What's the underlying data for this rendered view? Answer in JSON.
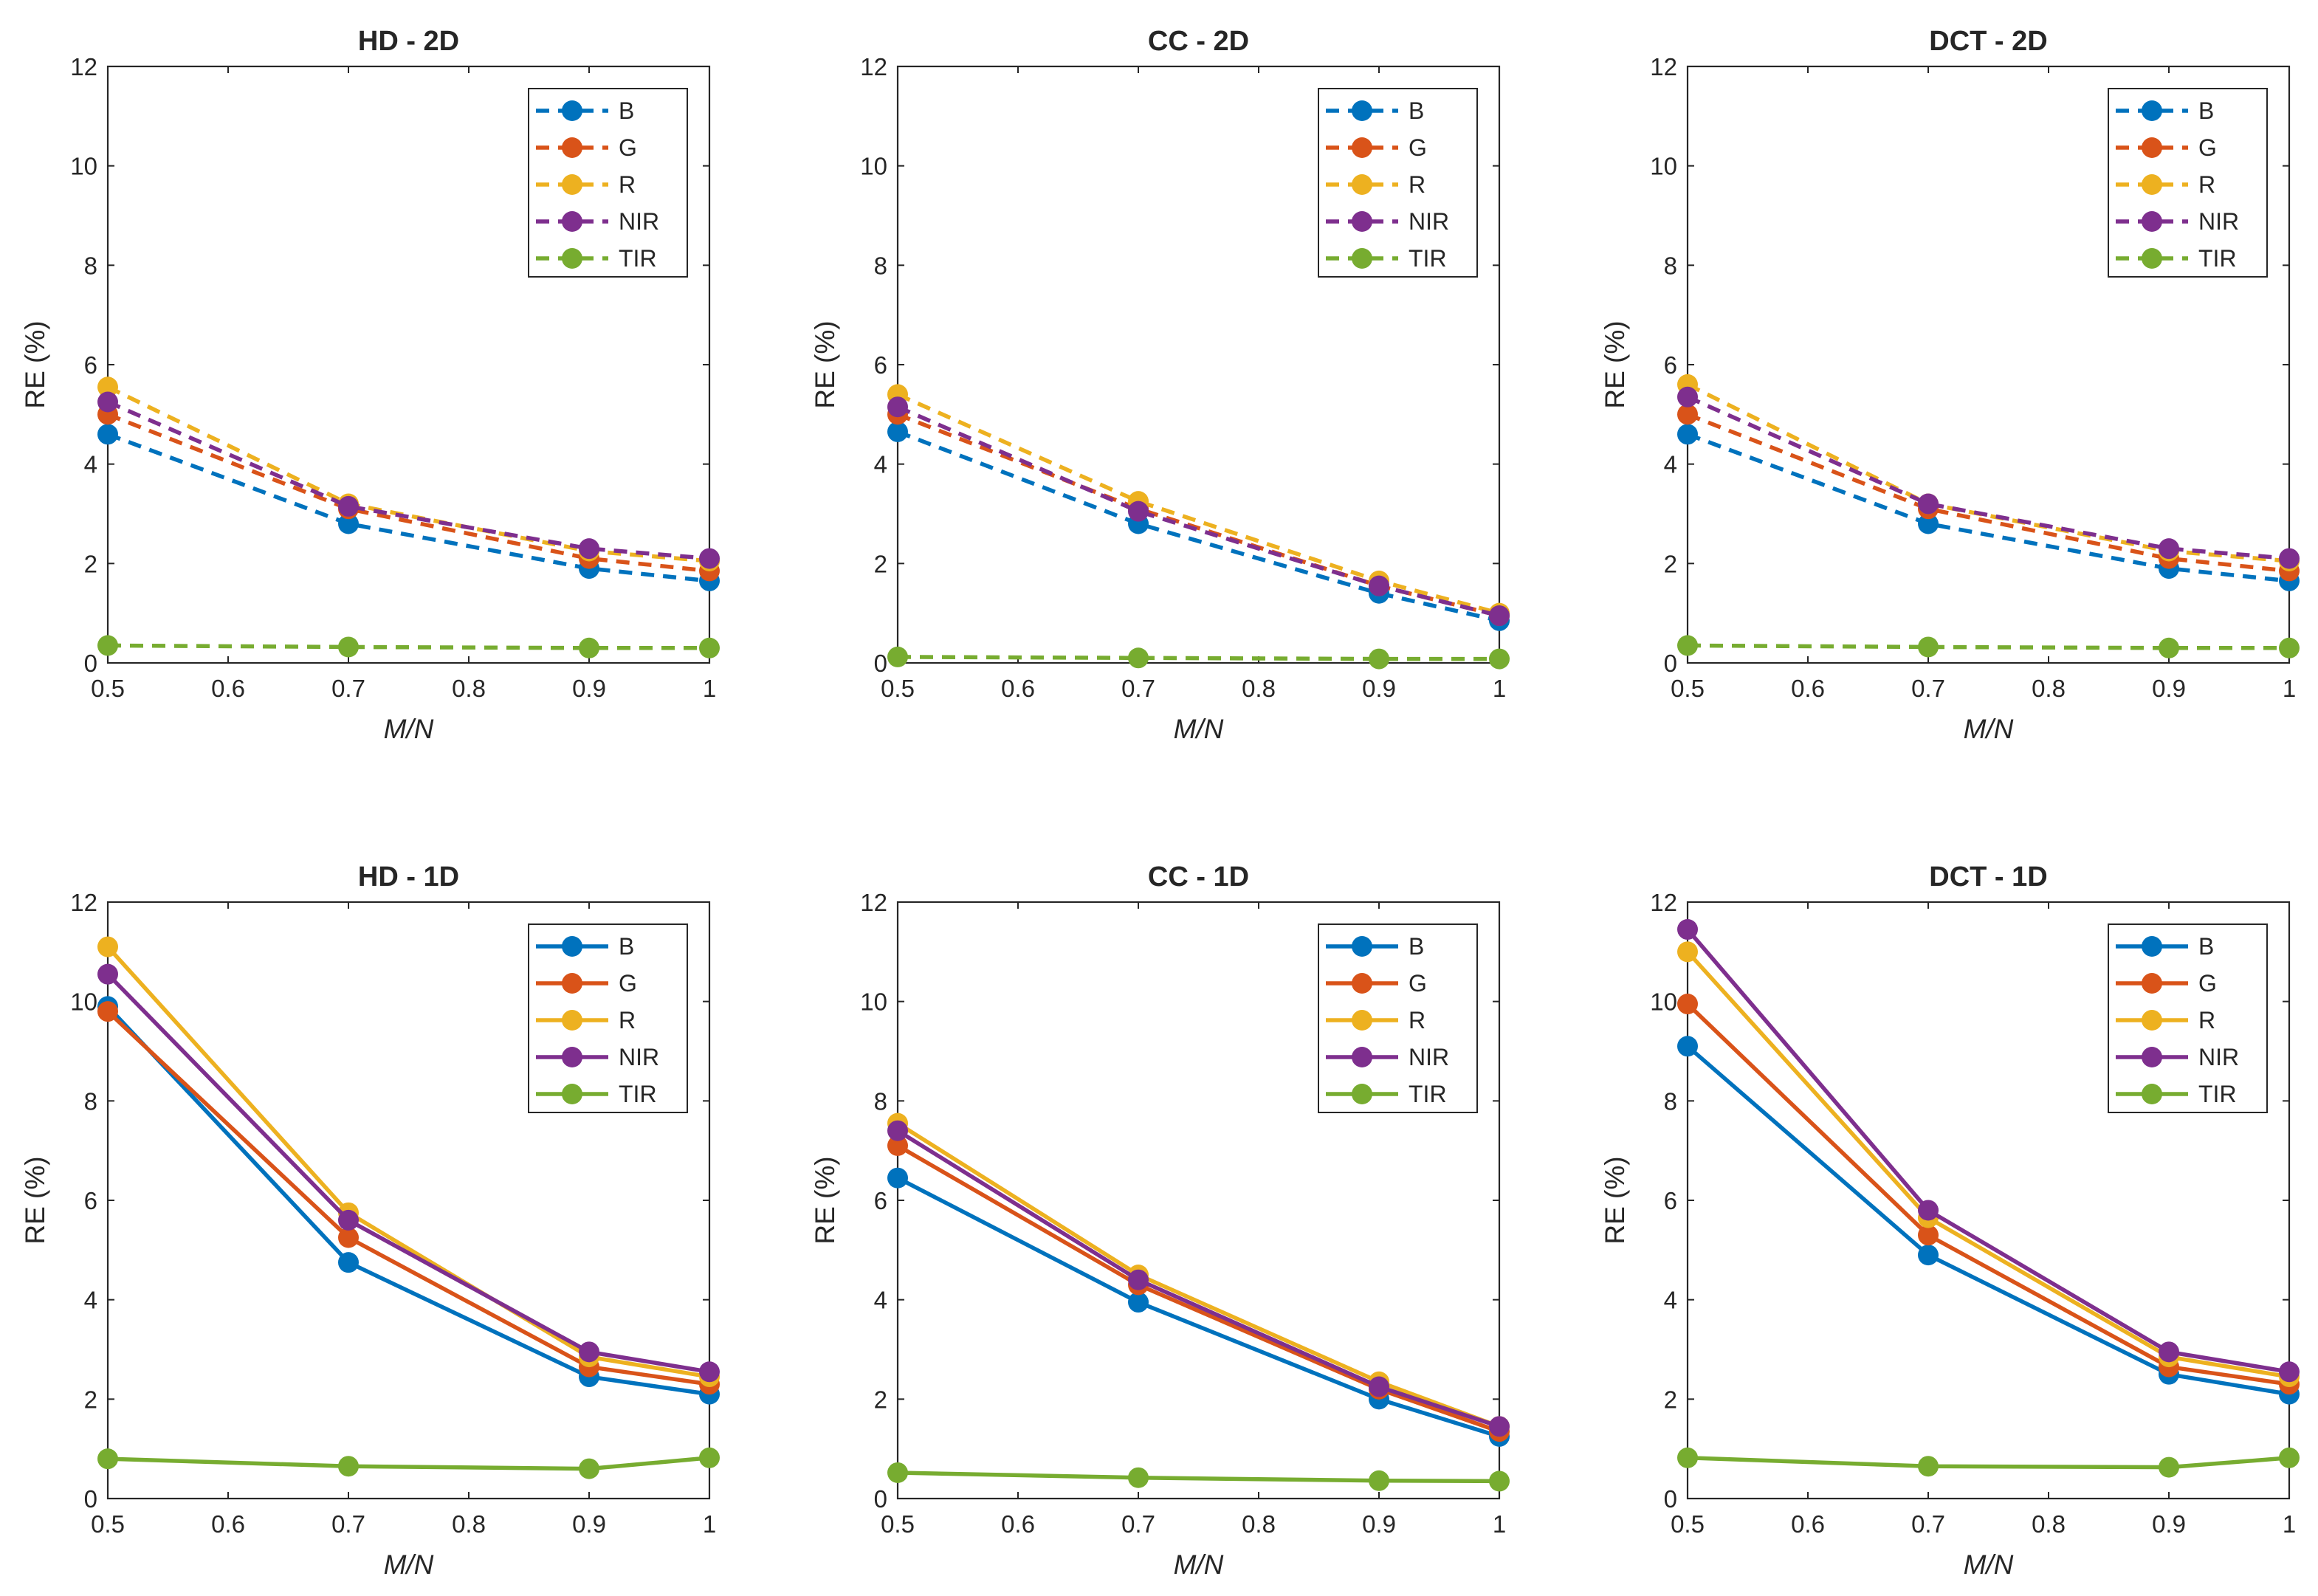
{
  "chart_data": [
    {
      "type": "line",
      "title": "HD - 2D",
      "xlabel": "M/N",
      "ylabel": "RE (%)",
      "line_style": "dashed",
      "xlim": [
        0.5,
        1
      ],
      "ylim": [
        0,
        12
      ],
      "x": [
        0.5,
        0.7,
        0.9,
        1
      ],
      "x_ticks": [
        "0.5",
        "0.6",
        "0.7",
        "0.8",
        "0.9",
        "1"
      ],
      "y_ticks": [
        "0",
        "2",
        "4",
        "6",
        "8",
        "10",
        "12"
      ],
      "legend_position": "top-right",
      "series": [
        {
          "name": "B",
          "color": "#0072BD",
          "values": [
            4.6,
            2.8,
            1.9,
            1.65
          ]
        },
        {
          "name": "G",
          "color": "#D95319",
          "values": [
            5.0,
            3.1,
            2.1,
            1.85
          ]
        },
        {
          "name": "R",
          "color": "#EDB120",
          "values": [
            5.55,
            3.2,
            2.25,
            2.05
          ]
        },
        {
          "name": "NIR",
          "color": "#7E2F8E",
          "values": [
            5.25,
            3.15,
            2.3,
            2.1
          ]
        },
        {
          "name": "TIR",
          "color": "#77AC30",
          "values": [
            0.35,
            0.32,
            0.3,
            0.3
          ]
        }
      ]
    },
    {
      "type": "line",
      "title": "CC - 2D",
      "xlabel": "M/N",
      "ylabel": "RE (%)",
      "line_style": "dashed",
      "xlim": [
        0.5,
        1
      ],
      "ylim": [
        0,
        12
      ],
      "x": [
        0.5,
        0.7,
        0.9,
        1
      ],
      "x_ticks": [
        "0.5",
        "0.6",
        "0.7",
        "0.8",
        "0.9",
        "1"
      ],
      "y_ticks": [
        "0",
        "2",
        "4",
        "6",
        "8",
        "10",
        "12"
      ],
      "legend_position": "top-right",
      "series": [
        {
          "name": "B",
          "color": "#0072BD",
          "values": [
            4.65,
            2.8,
            1.4,
            0.85
          ]
        },
        {
          "name": "G",
          "color": "#D95319",
          "values": [
            5.0,
            3.1,
            1.55,
            0.95
          ]
        },
        {
          "name": "R",
          "color": "#EDB120",
          "values": [
            5.4,
            3.25,
            1.65,
            1.0
          ]
        },
        {
          "name": "NIR",
          "color": "#7E2F8E",
          "values": [
            5.15,
            3.05,
            1.55,
            0.95
          ]
        },
        {
          "name": "TIR",
          "color": "#77AC30",
          "values": [
            0.12,
            0.1,
            0.08,
            0.08
          ]
        }
      ]
    },
    {
      "type": "line",
      "title": "DCT - 2D",
      "xlabel": "M/N",
      "ylabel": "RE (%)",
      "line_style": "dashed",
      "xlim": [
        0.5,
        1
      ],
      "ylim": [
        0,
        12
      ],
      "x": [
        0.5,
        0.7,
        0.9,
        1
      ],
      "x_ticks": [
        "0.5",
        "0.6",
        "0.7",
        "0.8",
        "0.9",
        "1"
      ],
      "y_ticks": [
        "0",
        "2",
        "4",
        "6",
        "8",
        "10",
        "12"
      ],
      "legend_position": "top-right",
      "series": [
        {
          "name": "B",
          "color": "#0072BD",
          "values": [
            4.6,
            2.8,
            1.9,
            1.65
          ]
        },
        {
          "name": "G",
          "color": "#D95319",
          "values": [
            5.0,
            3.1,
            2.1,
            1.85
          ]
        },
        {
          "name": "R",
          "color": "#EDB120",
          "values": [
            5.6,
            3.2,
            2.25,
            2.05
          ]
        },
        {
          "name": "NIR",
          "color": "#7E2F8E",
          "values": [
            5.35,
            3.2,
            2.3,
            2.1
          ]
        },
        {
          "name": "TIR",
          "color": "#77AC30",
          "values": [
            0.35,
            0.32,
            0.3,
            0.3
          ]
        }
      ]
    },
    {
      "type": "line",
      "title": "HD - 1D",
      "xlabel": "M/N",
      "ylabel": "RE (%)",
      "line_style": "solid",
      "xlim": [
        0.5,
        1
      ],
      "ylim": [
        0,
        12
      ],
      "x": [
        0.5,
        0.7,
        0.9,
        1
      ],
      "x_ticks": [
        "0.5",
        "0.6",
        "0.7",
        "0.8",
        "0.9",
        "1"
      ],
      "y_ticks": [
        "0",
        "2",
        "4",
        "6",
        "8",
        "10",
        "12"
      ],
      "legend_position": "top-right",
      "series": [
        {
          "name": "B",
          "color": "#0072BD",
          "values": [
            9.9,
            4.75,
            2.45,
            2.1
          ]
        },
        {
          "name": "G",
          "color": "#D95319",
          "values": [
            9.8,
            5.25,
            2.65,
            2.3
          ]
        },
        {
          "name": "R",
          "color": "#EDB120",
          "values": [
            11.1,
            5.75,
            2.85,
            2.45
          ]
        },
        {
          "name": "NIR",
          "color": "#7E2F8E",
          "values": [
            10.55,
            5.6,
            2.95,
            2.55
          ]
        },
        {
          "name": "TIR",
          "color": "#77AC30",
          "values": [
            0.8,
            0.65,
            0.6,
            0.82
          ]
        }
      ]
    },
    {
      "type": "line",
      "title": "CC - 1D",
      "xlabel": "M/N",
      "ylabel": "RE (%)",
      "line_style": "solid",
      "xlim": [
        0.5,
        1
      ],
      "ylim": [
        0,
        12
      ],
      "x": [
        0.5,
        0.7,
        0.9,
        1
      ],
      "x_ticks": [
        "0.5",
        "0.6",
        "0.7",
        "0.8",
        "0.9",
        "1"
      ],
      "y_ticks": [
        "0",
        "2",
        "4",
        "6",
        "8",
        "10",
        "12"
      ],
      "legend_position": "top-right",
      "series": [
        {
          "name": "B",
          "color": "#0072BD",
          "values": [
            6.45,
            3.95,
            2.0,
            1.25
          ]
        },
        {
          "name": "G",
          "color": "#D95319",
          "values": [
            7.1,
            4.3,
            2.2,
            1.35
          ]
        },
        {
          "name": "R",
          "color": "#EDB120",
          "values": [
            7.55,
            4.5,
            2.35,
            1.45
          ]
        },
        {
          "name": "NIR",
          "color": "#7E2F8E",
          "values": [
            7.4,
            4.4,
            2.25,
            1.45
          ]
        },
        {
          "name": "TIR",
          "color": "#77AC30",
          "values": [
            0.52,
            0.42,
            0.36,
            0.35
          ]
        }
      ]
    },
    {
      "type": "line",
      "title": "DCT - 1D",
      "xlabel": "M/N",
      "ylabel": "RE (%)",
      "line_style": "solid",
      "xlim": [
        0.5,
        1
      ],
      "ylim": [
        0,
        12
      ],
      "x": [
        0.5,
        0.7,
        0.9,
        1
      ],
      "x_ticks": [
        "0.5",
        "0.6",
        "0.7",
        "0.8",
        "0.9",
        "1"
      ],
      "y_ticks": [
        "0",
        "2",
        "4",
        "6",
        "8",
        "10",
        "12"
      ],
      "legend_position": "top-right",
      "series": [
        {
          "name": "B",
          "color": "#0072BD",
          "values": [
            9.1,
            4.9,
            2.5,
            2.1
          ]
        },
        {
          "name": "G",
          "color": "#D95319",
          "values": [
            9.95,
            5.3,
            2.65,
            2.3
          ]
        },
        {
          "name": "R",
          "color": "#EDB120",
          "values": [
            11.0,
            5.65,
            2.85,
            2.45
          ]
        },
        {
          "name": "NIR",
          "color": "#7E2F8E",
          "values": [
            11.45,
            5.8,
            2.95,
            2.55
          ]
        },
        {
          "name": "TIR",
          "color": "#77AC30",
          "values": [
            0.82,
            0.65,
            0.63,
            0.82
          ]
        }
      ]
    }
  ]
}
